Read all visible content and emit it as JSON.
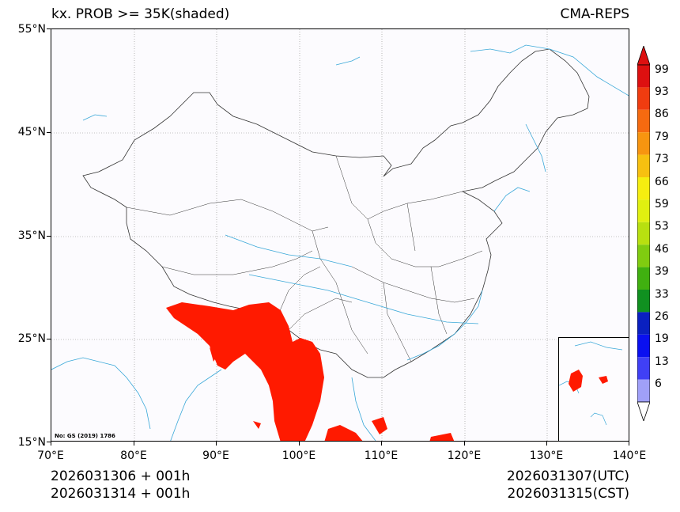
{
  "title_left": "kx. PROB >= 35K(shaded)",
  "title_right": "CMA-REPS",
  "lat_labels": [
    "55°N",
    "45°N",
    "35°N",
    "25°N",
    "15°N"
  ],
  "lon_labels": [
    "70°E",
    "80°E",
    "90°E",
    "100°E",
    "110°E",
    "120°E",
    "130°E",
    "140°E"
  ],
  "map_note": "No: GS (2019) 1786",
  "bottom_left_1": "2026031306  +  001h",
  "bottom_left_2": "2026031314  +  001h",
  "bottom_right_1": "2026031307(UTC)",
  "bottom_right_2": "2026031315(CST)",
  "colorbar": {
    "labels": [
      "99",
      "93",
      "86",
      "79",
      "73",
      "66",
      "59",
      "53",
      "46",
      "39",
      "33",
      "26",
      "19",
      "13",
      "6"
    ],
    "colors": [
      "#dd1010",
      "#f03c10",
      "#f56a10",
      "#f79510",
      "#f7c010",
      "#f5ee10",
      "#e0f010",
      "#b8e010",
      "#80cc10",
      "#40b010",
      "#109020",
      "#0a20c0",
      "#0a10f0",
      "#4040f5",
      "#a0a0f8"
    ],
    "top_arrow_color": "#dd1010",
    "bottom_arrow_color": "#ffffff"
  },
  "colors": {
    "probability_shading": "#ff1a00",
    "coastline": "#3aa8d8",
    "border": "#333333",
    "grid": "#888888"
  }
}
